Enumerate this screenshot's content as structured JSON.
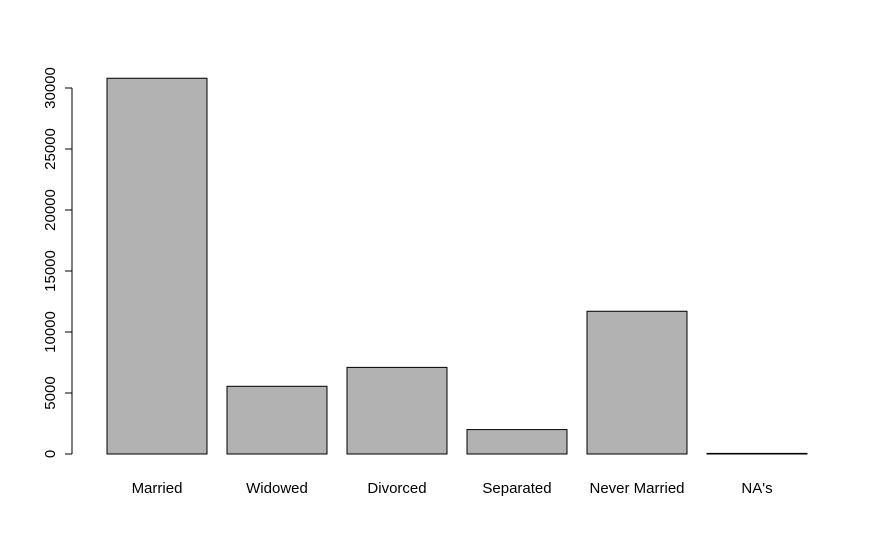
{
  "chart_data": {
    "type": "bar",
    "categories": [
      "Married",
      "Widowed",
      "Divorced",
      "Separated",
      "Never Married",
      "NA's"
    ],
    "values": [
      30800,
      5550,
      7100,
      2000,
      11700,
      50
    ],
    "title": "",
    "xlabel": "",
    "ylabel": "",
    "yticks": [
      0,
      5000,
      10000,
      15000,
      20000,
      25000,
      30000
    ],
    "ylim": [
      0,
      30800
    ],
    "grid": false,
    "legend": "none",
    "bar_color": "#b2b2b2",
    "bar_border_color": "#000000"
  }
}
